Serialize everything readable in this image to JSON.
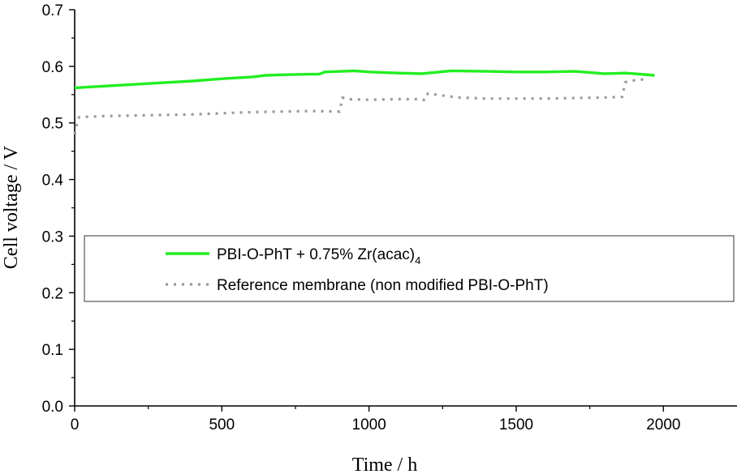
{
  "chart_data": {
    "type": "line",
    "xlabel": "Time / h",
    "ylabel": "Cell voltage / V",
    "xlim": [
      0,
      2250
    ],
    "ylim": [
      0,
      0.7
    ],
    "xticks": [
      0,
      500,
      1000,
      1500,
      2000
    ],
    "xtick_labels": [
      "0",
      "500",
      "1000",
      "1500",
      "2000"
    ],
    "yticks": [
      0.0,
      0.1,
      0.2,
      0.3,
      0.4,
      0.5,
      0.6,
      0.7
    ],
    "ytick_labels": [
      "0.0",
      "0.1",
      "0.2",
      "0.3",
      "0.4",
      "0.5",
      "0.6",
      "0.7"
    ],
    "grid": false,
    "legend_position": "middle-left",
    "series": [
      {
        "name": "PBI-O-PhT + 0.75% Zr(acac)4",
        "legend_main": "PBI-O-PhT + 0.75% Zr(acac)",
        "legend_sub": "4",
        "color": "#22ee22",
        "style": "solid",
        "x": [
          0,
          100,
          200,
          300,
          400,
          500,
          600,
          650,
          700,
          800,
          830,
          850,
          950,
          1000,
          1100,
          1180,
          1200,
          1280,
          1400,
          1500,
          1600,
          1700,
          1800,
          1870,
          1900,
          1970
        ],
        "y": [
          0.562,
          0.565,
          0.568,
          0.571,
          0.574,
          0.578,
          0.581,
          0.584,
          0.585,
          0.586,
          0.586,
          0.59,
          0.592,
          0.59,
          0.588,
          0.587,
          0.588,
          0.592,
          0.591,
          0.59,
          0.59,
          0.591,
          0.587,
          0.588,
          0.587,
          0.584
        ]
      },
      {
        "name": "Reference membrane (non modified PBI-O-PhT)",
        "color": "#999999",
        "style": "dotted",
        "x": [
          0,
          8,
          15,
          50,
          100,
          200,
          300,
          400,
          500,
          600,
          700,
          800,
          900,
          910,
          920,
          1000,
          1100,
          1180,
          1190,
          1200,
          1300,
          1400,
          1500,
          1600,
          1700,
          1800,
          1860,
          1870,
          1900,
          1950
        ],
        "y": [
          0.48,
          0.5,
          0.51,
          0.511,
          0.512,
          0.513,
          0.514,
          0.515,
          0.517,
          0.519,
          0.52,
          0.521,
          0.52,
          0.545,
          0.542,
          0.541,
          0.542,
          0.542,
          0.54,
          0.552,
          0.545,
          0.543,
          0.543,
          0.543,
          0.544,
          0.545,
          0.546,
          0.572,
          0.575,
          0.578
        ]
      }
    ]
  }
}
